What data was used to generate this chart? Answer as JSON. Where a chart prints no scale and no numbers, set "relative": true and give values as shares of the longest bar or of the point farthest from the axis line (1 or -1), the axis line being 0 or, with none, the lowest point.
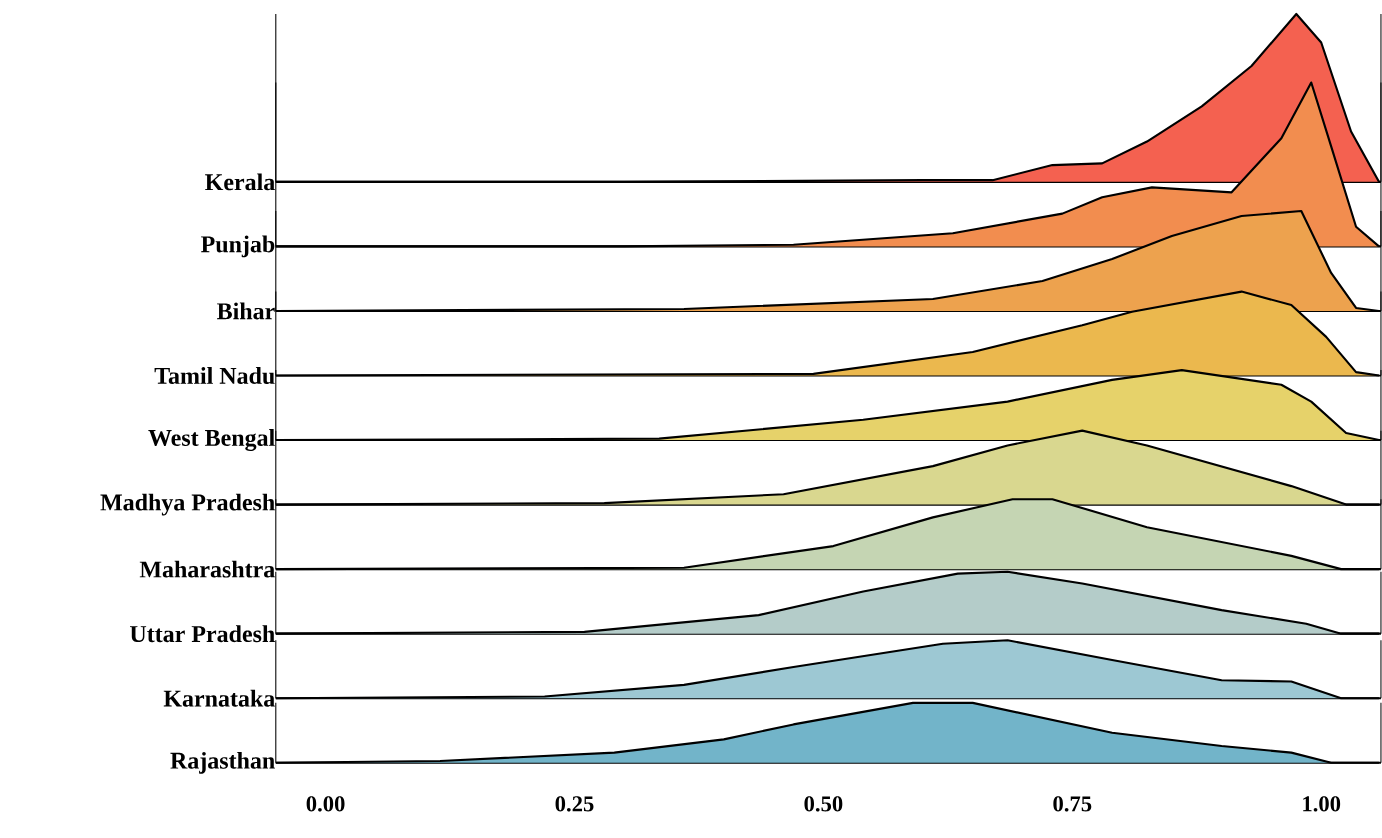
{
  "chart_data": [
    {
      "type": "area",
      "relative": true,
      "xlim": [
        -0.05,
        1.06
      ],
      "tick_labels": false,
      "series": [
        {
          "name": "Kerala",
          "color": "#f46150",
          "x": [
            -0.05,
            0.3,
            0.6,
            0.67,
            0.73,
            0.78,
            0.825,
            0.88,
            0.93,
            0.975,
            1.0,
            1.03,
            1.058
          ],
          "values": [
            0,
            0,
            0.01,
            0.01,
            0.1,
            0.11,
            0.24,
            0.45,
            0.69,
            1.0,
            0.83,
            0.3,
            0
          ]
        }
      ]
    },
    {
      "type": "area",
      "relative": true,
      "xlim": [
        -0.05,
        1.06
      ],
      "tick_labels": false,
      "series": [
        {
          "name": "Punjab",
          "color": "#f28d4f",
          "x": [
            -0.05,
            0.3,
            0.47,
            0.63,
            0.74,
            0.78,
            0.83,
            0.91,
            0.96,
            0.99,
            1.01,
            1.035,
            1.058
          ],
          "values": [
            0,
            0,
            0.01,
            0.08,
            0.2,
            0.3,
            0.36,
            0.33,
            0.66,
            1,
            0.61,
            0.12,
            0
          ]
        }
      ]
    },
    {
      "type": "area",
      "relative": true,
      "xlim": [
        -0.05,
        1.06
      ],
      "tick_labels": false,
      "series": [
        {
          "name": "Bihar",
          "color": "#eda24e",
          "x": [
            -0.05,
            0.36,
            0.61,
            0.72,
            0.79,
            0.85,
            0.92,
            0.98,
            1.01,
            1.035,
            1.058
          ],
          "values": [
            0,
            0.02,
            0.12,
            0.3,
            0.52,
            0.75,
            0.95,
            1,
            0.38,
            0.03,
            0
          ]
        }
      ]
    },
    {
      "type": "area",
      "relative": true,
      "xlim": [
        -0.05,
        1.06
      ],
      "tick_labels": false,
      "series": [
        {
          "name": "Tamil Nadu",
          "color": "#ebb84e",
          "x": [
            -0.05,
            0.49,
            0.65,
            0.76,
            0.81,
            0.92,
            0.97,
            1.005,
            1.035,
            1.058
          ],
          "values": [
            0,
            0.02,
            0.28,
            0.6,
            0.76,
            1,
            0.84,
            0.46,
            0.04,
            0
          ]
        }
      ]
    },
    {
      "type": "area",
      "relative": true,
      "xlim": [
        -0.05,
        1.06
      ],
      "tick_labels": false,
      "series": [
        {
          "name": "West Bengal",
          "color": "#e6d26a",
          "x": [
            -0.05,
            0.335,
            0.54,
            0.685,
            0.79,
            0.86,
            0.96,
            0.99,
            1.025,
            1.058
          ],
          "values": [
            0,
            0.02,
            0.29,
            0.55,
            0.86,
            1,
            0.79,
            0.55,
            0.1,
            0
          ]
        }
      ]
    },
    {
      "type": "area",
      "relative": true,
      "xlim": [
        -0.05,
        1.06
      ],
      "tick_labels": false,
      "series": [
        {
          "name": "Madhya Pradesh",
          "color": "#d9d78f",
          "x": [
            -0.05,
            0.28,
            0.46,
            0.61,
            0.685,
            0.76,
            0.825,
            0.97,
            1.025,
            1.058
          ],
          "values": [
            0,
            0.02,
            0.14,
            0.52,
            0.8,
            1,
            0.8,
            0.25,
            0,
            0
          ]
        }
      ]
    },
    {
      "type": "area",
      "relative": true,
      "xlim": [
        -0.05,
        1.06
      ],
      "tick_labels": false,
      "series": [
        {
          "name": "Maharashtra",
          "color": "#c5d5b3",
          "x": [
            -0.05,
            0.36,
            0.51,
            0.61,
            0.69,
            0.73,
            0.825,
            0.97,
            1.02,
            1.058
          ],
          "values": [
            0,
            0.02,
            0.33,
            0.74,
            1,
            1,
            0.6,
            0.19,
            0,
            0
          ]
        }
      ]
    },
    {
      "type": "area",
      "relative": true,
      "xlim": [
        -0.05,
        1.06
      ],
      "tick_labels": false,
      "series": [
        {
          "name": "Uttar Pradesh",
          "color": "#b4ccc9",
          "x": [
            -0.05,
            0.26,
            0.435,
            0.54,
            0.635,
            0.685,
            0.76,
            0.9,
            0.985,
            1.02,
            1.058
          ],
          "values": [
            0,
            0.03,
            0.3,
            0.68,
            0.97,
            1,
            0.81,
            0.38,
            0.16,
            0,
            0
          ]
        }
      ]
    },
    {
      "type": "area",
      "relative": true,
      "xlim": [
        -0.05,
        1.06
      ],
      "tick_labels": false,
      "series": [
        {
          "name": "Karnataka",
          "color": "#9dc8d3",
          "x": [
            -0.05,
            0.22,
            0.36,
            0.47,
            0.62,
            0.685,
            0.79,
            0.9,
            0.97,
            1.02,
            1.058
          ],
          "values": [
            0,
            0.03,
            0.23,
            0.54,
            0.94,
            1,
            0.66,
            0.31,
            0.29,
            0,
            0
          ]
        }
      ]
    },
    {
      "type": "area",
      "relative": true,
      "xlim": [
        -0.05,
        1.06
      ],
      "xticks": [
        {
          "value": 0,
          "label": "0.00"
        },
        {
          "value": 0.25,
          "label": "0.25"
        },
        {
          "value": 0.5,
          "label": "0.50"
        },
        {
          "value": 0.75,
          "label": "0.75"
        },
        {
          "value": 1,
          "label": "1.00"
        }
      ],
      "tick_labels": "x",
      "series": [
        {
          "name": "Rajasthan",
          "color": "#72b4c9",
          "x": [
            -0.05,
            0.115,
            0.29,
            0.4,
            0.47,
            0.59,
            0.65,
            0.79,
            0.9,
            0.97,
            1.01,
            1.058
          ],
          "values": [
            0,
            0.03,
            0.17,
            0.39,
            0.64,
            1,
            1,
            0.5,
            0.28,
            0.17,
            0,
            0
          ]
        }
      ]
    }
  ]
}
